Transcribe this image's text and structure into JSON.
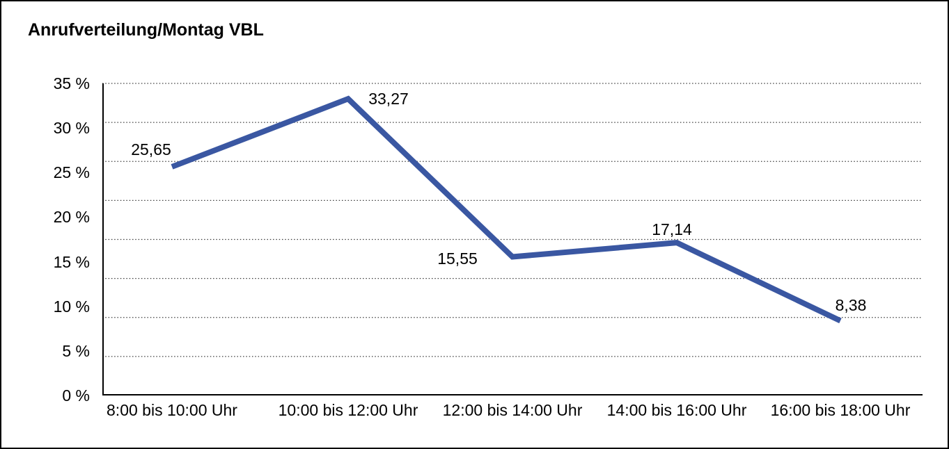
{
  "title": "Anrufverteilung/Montag VBL",
  "chart_data": {
    "type": "line",
    "title": "Anrufverteilung/Montag VBL",
    "categories": [
      "8:00 bis 10:00 Uhr",
      "10:00 bis 12:00 Uhr",
      "12:00 bis 14:00 Uhr",
      "14:00 bis 16:00 Uhr",
      "16:00 bis 18:00 Uhr"
    ],
    "values": [
      25.65,
      33.27,
      15.55,
      17.14,
      8.38
    ],
    "point_labels": [
      "25,65",
      "33,27",
      "15,55",
      "17,14",
      "8,38"
    ],
    "xlabel": "",
    "ylabel": "",
    "ylim": [
      0,
      35
    ],
    "y_ticks": [
      {
        "v": 35,
        "label": "35 %"
      },
      {
        "v": 30,
        "label": "30 %"
      },
      {
        "v": 25,
        "label": "25 %"
      },
      {
        "v": 20,
        "label": "20 %"
      },
      {
        "v": 15,
        "label": "15 %"
      },
      {
        "v": 10,
        "label": "10 %"
      },
      {
        "v": 5,
        "label": "5 %"
      },
      {
        "v": 0,
        "label": "0 %"
      }
    ],
    "grid": {
      "horizontal": true,
      "style": "dotted",
      "divisions": 8
    },
    "legend": "none",
    "line_color": "#3a57a2",
    "axis_color": "#000000",
    "grid_color": "#3b3b3b",
    "text_color": "#000000",
    "background": "#ffffff"
  }
}
